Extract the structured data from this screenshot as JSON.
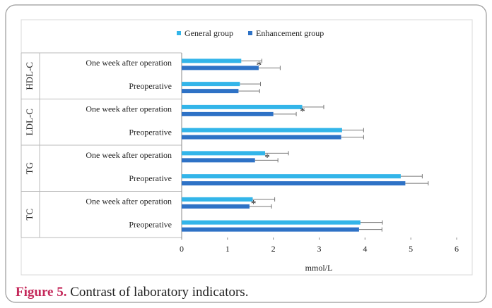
{
  "chart_data": {
    "type": "grouped-hbar",
    "groups": [
      "HDL-C",
      "LDL-C",
      "TG",
      "TC"
    ],
    "categories": [
      "One week after operation",
      "Preoperative",
      "One week after operation",
      "Preoperative",
      "One week after operation",
      "Preoperative",
      "One week after operation",
      "Preoperative"
    ],
    "series": [
      {
        "name": "General group",
        "color": "#33b5e9",
        "values": [
          1.3,
          1.27,
          2.63,
          3.5,
          1.82,
          4.78,
          1.55,
          3.9
        ],
        "errors": [
          0.45,
          0.45,
          0.47,
          0.47,
          0.51,
          0.47,
          0.48,
          0.48
        ]
      },
      {
        "name": "Enhancement group",
        "color": "#2e72c6",
        "values": [
          1.68,
          1.24,
          2.0,
          3.48,
          1.6,
          4.88,
          1.48,
          3.87
        ],
        "errors": [
          0.47,
          0.46,
          0.5,
          0.49,
          0.5,
          0.5,
          0.48,
          0.5
        ]
      }
    ],
    "markers": [
      "*",
      null,
      "*",
      null,
      "*",
      null,
      "*",
      null
    ],
    "xlim": [
      0,
      6
    ],
    "xticks": [
      0,
      1,
      2,
      3,
      4,
      5,
      6
    ],
    "xlabel": "mmol/L",
    "legend": "top"
  },
  "caption": {
    "label": "Figure 5.",
    "text": "Contrast of laboratory indicators."
  }
}
